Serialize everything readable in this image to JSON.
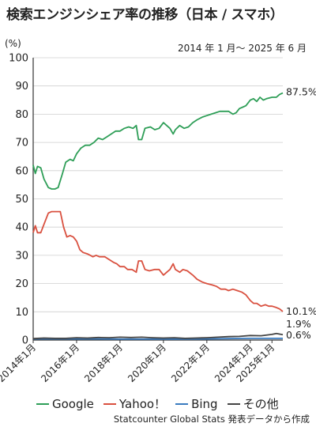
{
  "title": "検索エンジンシェア率の推移（日本 / スマホ）",
  "period": "2014 年 1 月～ 2025 年 6 月",
  "source": "Statcounter Global Stats 発表データから作成",
  "chart_data": {
    "type": "line",
    "ylabel": "(%)",
    "ylim": [
      0,
      100
    ],
    "yticks": [
      0,
      10,
      20,
      30,
      40,
      50,
      60,
      70,
      80,
      90,
      100
    ],
    "xlim": [
      2014.0,
      2025.5
    ],
    "xticks": [
      {
        "value": 2014.0,
        "label": "2014年1月"
      },
      {
        "value": 2016.0,
        "label": "2016年1月"
      },
      {
        "value": 2018.0,
        "label": "2018年1月"
      },
      {
        "value": 2020.0,
        "label": "2020年1月"
      },
      {
        "value": 2022.0,
        "label": "2022年1月"
      },
      {
        "value": 2024.0,
        "label": "2024年1月"
      },
      {
        "value": 2025.0,
        "label": "2025年1月"
      }
    ],
    "grid": true,
    "legend_position": "bottom",
    "series": [
      {
        "name": "Google",
        "color": "#2e9e57",
        "end_label": "87.5%",
        "points": [
          [
            2014.0,
            62
          ],
          [
            2014.1,
            59
          ],
          [
            2014.2,
            61.5
          ],
          [
            2014.35,
            61
          ],
          [
            2014.5,
            57
          ],
          [
            2014.7,
            54
          ],
          [
            2014.85,
            53.5
          ],
          [
            2015.0,
            53.5
          ],
          [
            2015.15,
            54
          ],
          [
            2015.35,
            59
          ],
          [
            2015.5,
            63
          ],
          [
            2015.7,
            64
          ],
          [
            2015.85,
            63.5
          ],
          [
            2016.0,
            66
          ],
          [
            2016.2,
            68
          ],
          [
            2016.4,
            69
          ],
          [
            2016.6,
            69
          ],
          [
            2016.8,
            70
          ],
          [
            2017.0,
            71.5
          ],
          [
            2017.2,
            71
          ],
          [
            2017.4,
            72
          ],
          [
            2017.6,
            73
          ],
          [
            2017.8,
            74
          ],
          [
            2018.0,
            74
          ],
          [
            2018.2,
            75
          ],
          [
            2018.4,
            75.5
          ],
          [
            2018.6,
            75
          ],
          [
            2018.75,
            76
          ],
          [
            2018.85,
            71
          ],
          [
            2019.0,
            71
          ],
          [
            2019.15,
            75
          ],
          [
            2019.4,
            75.5
          ],
          [
            2019.6,
            74.5
          ],
          [
            2019.8,
            75
          ],
          [
            2020.0,
            77
          ],
          [
            2020.15,
            76
          ],
          [
            2020.3,
            75
          ],
          [
            2020.45,
            73
          ],
          [
            2020.55,
            74.5
          ],
          [
            2020.75,
            76
          ],
          [
            2020.95,
            75
          ],
          [
            2021.15,
            75.5
          ],
          [
            2021.35,
            77
          ],
          [
            2021.55,
            78
          ],
          [
            2021.8,
            79
          ],
          [
            2022.0,
            79.5
          ],
          [
            2022.2,
            80
          ],
          [
            2022.4,
            80.5
          ],
          [
            2022.6,
            81
          ],
          [
            2022.85,
            81
          ],
          [
            2023.0,
            81
          ],
          [
            2023.2,
            80
          ],
          [
            2023.35,
            80.5
          ],
          [
            2023.5,
            82
          ],
          [
            2023.65,
            82.5
          ],
          [
            2023.8,
            83
          ],
          [
            2024.0,
            85
          ],
          [
            2024.15,
            85.5
          ],
          [
            2024.3,
            84.5
          ],
          [
            2024.45,
            86
          ],
          [
            2024.6,
            85
          ],
          [
            2024.75,
            85.5
          ],
          [
            2025.0,
            86
          ],
          [
            2025.2,
            86
          ],
          [
            2025.35,
            87
          ],
          [
            2025.5,
            87.5
          ]
        ]
      },
      {
        "name": "Yahoo！",
        "color": "#d9503f",
        "end_label": "10.1%",
        "points": [
          [
            2014.0,
            38
          ],
          [
            2014.1,
            40.5
          ],
          [
            2014.2,
            38
          ],
          [
            2014.35,
            38
          ],
          [
            2014.5,
            41
          ],
          [
            2014.7,
            45
          ],
          [
            2014.85,
            45.5
          ],
          [
            2015.0,
            45.5
          ],
          [
            2015.25,
            45.5
          ],
          [
            2015.4,
            40
          ],
          [
            2015.55,
            36.5
          ],
          [
            2015.7,
            37
          ],
          [
            2015.85,
            36.5
          ],
          [
            2016.0,
            35
          ],
          [
            2016.15,
            32
          ],
          [
            2016.3,
            31
          ],
          [
            2016.5,
            30.5
          ],
          [
            2016.75,
            29.5
          ],
          [
            2016.9,
            30
          ],
          [
            2017.05,
            29.5
          ],
          [
            2017.3,
            29.5
          ],
          [
            2017.5,
            28.5
          ],
          [
            2017.7,
            27.5
          ],
          [
            2017.85,
            27
          ],
          [
            2018.0,
            26
          ],
          [
            2018.2,
            26
          ],
          [
            2018.35,
            25
          ],
          [
            2018.55,
            25
          ],
          [
            2018.75,
            24
          ],
          [
            2018.85,
            28
          ],
          [
            2019.0,
            28
          ],
          [
            2019.15,
            25
          ],
          [
            2019.35,
            24.5
          ],
          [
            2019.6,
            25
          ],
          [
            2019.8,
            25
          ],
          [
            2020.0,
            23
          ],
          [
            2020.15,
            24
          ],
          [
            2020.3,
            25
          ],
          [
            2020.45,
            27
          ],
          [
            2020.55,
            25
          ],
          [
            2020.75,
            24
          ],
          [
            2020.9,
            25
          ],
          [
            2021.1,
            24.5
          ],
          [
            2021.35,
            23
          ],
          [
            2021.55,
            21.5
          ],
          [
            2021.8,
            20.5
          ],
          [
            2022.0,
            20
          ],
          [
            2022.25,
            19.5
          ],
          [
            2022.45,
            19
          ],
          [
            2022.65,
            18
          ],
          [
            2022.85,
            18
          ],
          [
            2023.0,
            17.5
          ],
          [
            2023.2,
            18
          ],
          [
            2023.4,
            17.5
          ],
          [
            2023.6,
            17
          ],
          [
            2023.8,
            16
          ],
          [
            2024.0,
            14
          ],
          [
            2024.15,
            13
          ],
          [
            2024.3,
            13
          ],
          [
            2024.5,
            12
          ],
          [
            2024.7,
            12.5
          ],
          [
            2024.85,
            12
          ],
          [
            2025.0,
            12
          ],
          [
            2025.2,
            11.5
          ],
          [
            2025.35,
            11
          ],
          [
            2025.5,
            10.1
          ]
        ]
      },
      {
        "name": "Bing",
        "color": "#3a7bbf",
        "end_label": "0.6%",
        "points": [
          [
            2014.0,
            0.4
          ],
          [
            2015.0,
            0.4
          ],
          [
            2016.0,
            0.4
          ],
          [
            2017.0,
            0.4
          ],
          [
            2018.0,
            0.3
          ],
          [
            2019.0,
            0.3
          ],
          [
            2020.0,
            0.3
          ],
          [
            2021.0,
            0.3
          ],
          [
            2022.0,
            0.4
          ],
          [
            2023.0,
            0.5
          ],
          [
            2024.0,
            0.6
          ],
          [
            2025.0,
            0.6
          ],
          [
            2025.5,
            0.6
          ]
        ]
      },
      {
        "name": "その他",
        "color": "#444444",
        "end_label": "1.9%",
        "points": [
          [
            2014.0,
            0.5
          ],
          [
            2014.5,
            0.7
          ],
          [
            2015.0,
            0.6
          ],
          [
            2015.5,
            0.6
          ],
          [
            2016.0,
            0.8
          ],
          [
            2016.5,
            0.7
          ],
          [
            2017.0,
            0.9
          ],
          [
            2017.5,
            0.8
          ],
          [
            2018.0,
            1.0
          ],
          [
            2018.5,
            0.9
          ],
          [
            2019.0,
            1.0
          ],
          [
            2019.5,
            0.8
          ],
          [
            2020.0,
            0.7
          ],
          [
            2020.5,
            0.8
          ],
          [
            2021.0,
            0.6
          ],
          [
            2021.5,
            0.7
          ],
          [
            2022.0,
            0.8
          ],
          [
            2022.5,
            1.0
          ],
          [
            2023.0,
            1.2
          ],
          [
            2023.5,
            1.3
          ],
          [
            2024.0,
            1.6
          ],
          [
            2024.5,
            1.5
          ],
          [
            2025.0,
            2.0
          ],
          [
            2025.2,
            2.3
          ],
          [
            2025.5,
            1.9
          ]
        ]
      }
    ]
  }
}
